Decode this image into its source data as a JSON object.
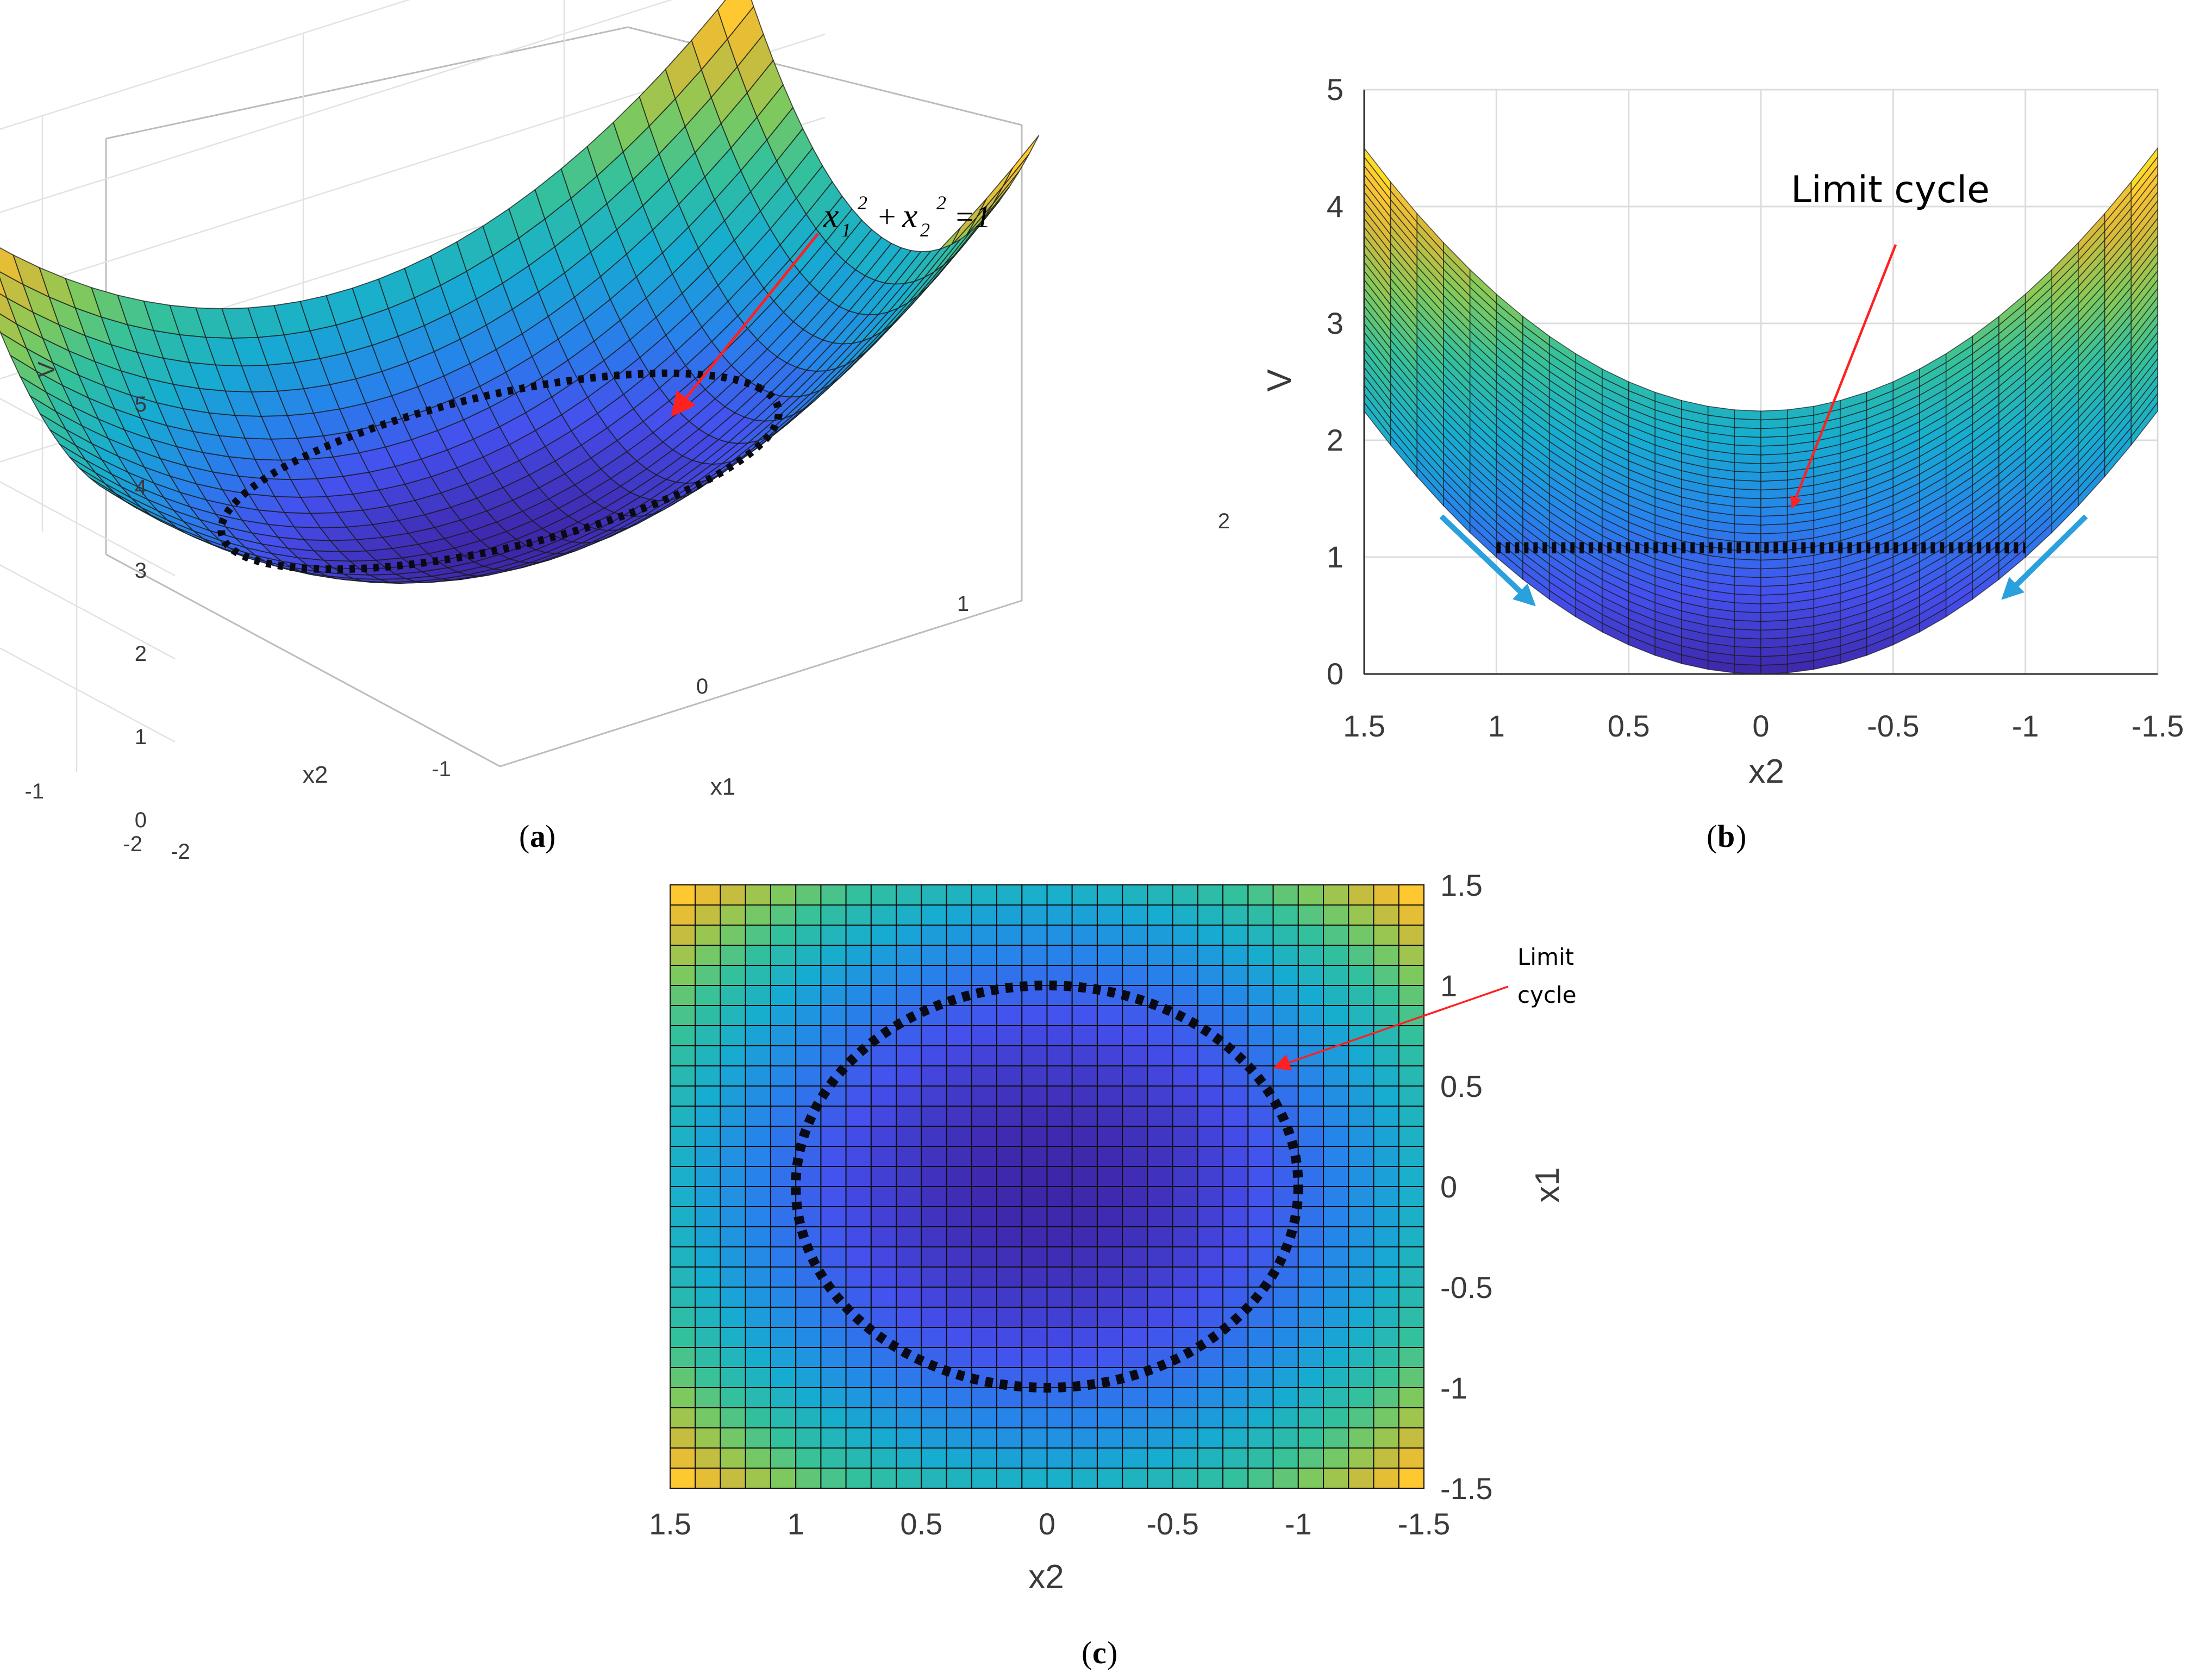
{
  "chart_data": [
    {
      "panel": "a",
      "type": "surface",
      "caption_letter": "a",
      "function": "V = x1^2 + x2^2",
      "x1_range": [
        -2,
        2
      ],
      "x2_range": [
        -2,
        2
      ],
      "zlim": [
        0,
        5
      ],
      "xlabel": "x1",
      "ylabel": "x2",
      "zlabel": "V",
      "x1_ticks": [
        "-2",
        "-1",
        "0",
        "1",
        "2"
      ],
      "x2_ticks": [
        "-2",
        "-1",
        "0",
        "1",
        "2"
      ],
      "z_ticks": [
        "0",
        "1",
        "2",
        "3",
        "4",
        "5"
      ],
      "annotation": {
        "lhs_1": "x",
        "sub_1": "1",
        "sup_1": "2",
        "plus": "+",
        "lhs_2": "x",
        "sub_2": "2",
        "sup_2": "2",
        "rhs": "=1"
      },
      "limit_cycle_radius": 1,
      "grid": true
    },
    {
      "panel": "b",
      "type": "surface",
      "caption_letter": "b",
      "view": "side",
      "function": "V = x1^2 + x2^2",
      "x2_range": [
        1.5,
        -1.5
      ],
      "ylim": [
        0,
        5
      ],
      "xlabel": "x2",
      "ylabel": "V",
      "x_ticks": [
        "1.5",
        "1",
        "0.5",
        "0",
        "-0.5",
        "-1",
        "-1.5"
      ],
      "y_ticks": [
        "0",
        "1",
        "2",
        "3",
        "4",
        "5"
      ],
      "annotation": "Limit cycle",
      "limit_cycle_level": 1,
      "grid": true
    },
    {
      "panel": "c",
      "type": "heatmap",
      "caption_letter": "c",
      "view": "top",
      "function": "V = x1^2 + x2^2",
      "x2_range": [
        1.5,
        -1.5
      ],
      "x1_range": [
        -1.5,
        1.5
      ],
      "xlabel": "x2",
      "ylabel": "x1",
      "x_ticks": [
        "1.5",
        "1",
        "0.5",
        "0",
        "-0.5",
        "-1",
        "-1.5"
      ],
      "y_ticks": [
        "1.5",
        "1",
        "0.5",
        "0",
        "-0.5",
        "-1",
        "-1.5"
      ],
      "annotation_line1": "Limit",
      "annotation_line2": "cycle",
      "limit_cycle_radius": 1
    }
  ],
  "colors": {
    "arrow_red": "#ff2020",
    "arrow_blue": "#2aa0dc",
    "limit_cycle": "#0a0a14"
  },
  "colormap": "parula"
}
